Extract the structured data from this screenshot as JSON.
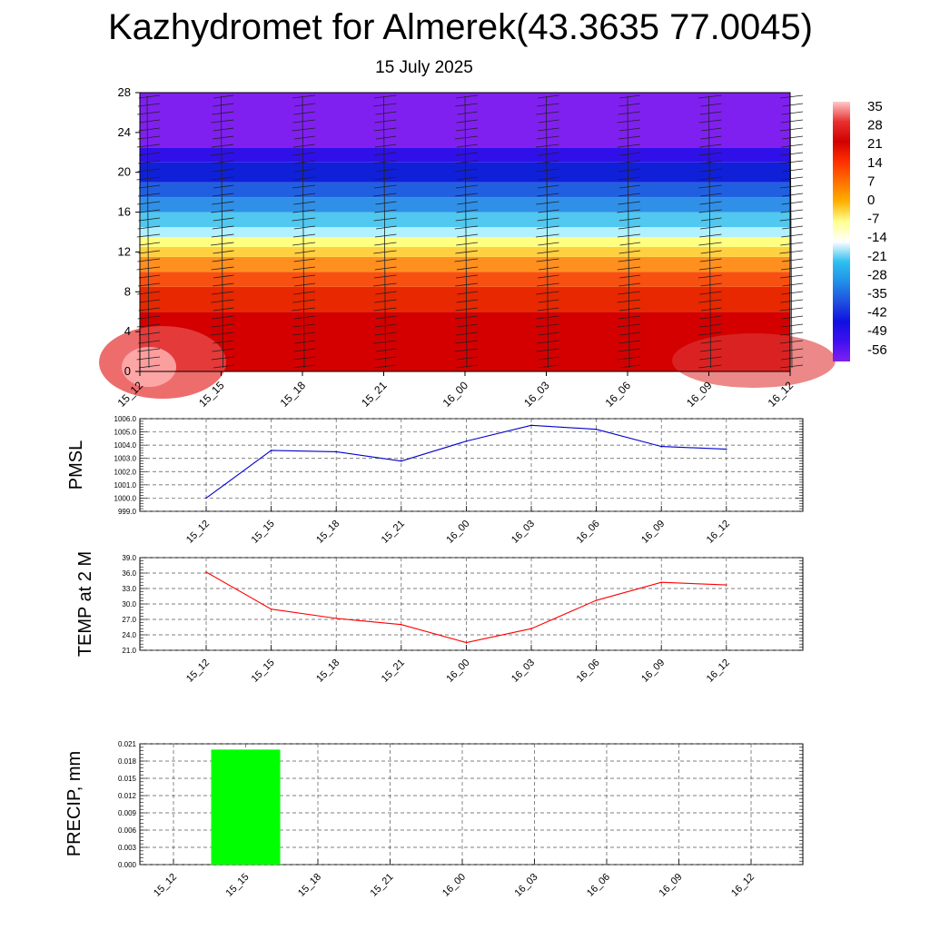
{
  "header": {
    "title": "Kazhydromet for Almerek(43.3635 77.0045)",
    "subtitle": "15 July 2025"
  },
  "chart_data": [
    {
      "type": "heatmap",
      "name": "vertical-cross-section",
      "x": [
        "15_12",
        "15_15",
        "15_18",
        "15_21",
        "16_00",
        "16_03",
        "16_06",
        "16_09",
        "16_12"
      ],
      "y_ticks": [
        0,
        4,
        8,
        12,
        16,
        20,
        24,
        28
      ],
      "ylim": [
        0,
        28
      ],
      "colorbar": {
        "labels": [
          "35",
          "28",
          "21",
          "14",
          "7",
          "0",
          "-7",
          "-14",
          "-21",
          "-28",
          "-35",
          "-42",
          "-49",
          "-56"
        ],
        "stops": [
          "#ffc8c8",
          "#e83030",
          "#d20000",
          "#ff3000",
          "#ff7000",
          "#ffb000",
          "#ffff90",
          "#ffffff",
          "#30c0f0",
          "#2090e8",
          "#2050e0",
          "#1010e0",
          "#4010f0",
          "#8020f0"
        ]
      },
      "bands": [
        {
          "from": 0,
          "to": 6,
          "color": "#d40000"
        },
        {
          "from": 6,
          "to": 8.5,
          "color": "#e82800"
        },
        {
          "from": 8.5,
          "to": 10,
          "color": "#f85010"
        },
        {
          "from": 10,
          "to": 11.5,
          "color": "#ff9020"
        },
        {
          "from": 11.5,
          "to": 12.5,
          "color": "#ffd040"
        },
        {
          "from": 12.5,
          "to": 13.5,
          "color": "#ffff80"
        },
        {
          "from": 13.5,
          "to": 14.5,
          "color": "#b0f0ff"
        },
        {
          "from": 14.5,
          "to": 16,
          "color": "#50c8f0"
        },
        {
          "from": 16,
          "to": 17.5,
          "color": "#3090e8"
        },
        {
          "from": 17.5,
          "to": 19,
          "color": "#2060e0"
        },
        {
          "from": 19,
          "to": 21,
          "color": "#1020d8"
        },
        {
          "from": 21,
          "to": 22.5,
          "color": "#3010e8"
        },
        {
          "from": 22.5,
          "to": 28,
          "color": "#8020f0"
        }
      ]
    },
    {
      "type": "line",
      "name": "pmsl",
      "ylabel": "PMSL",
      "x": [
        "15_12",
        "15_15",
        "15_18",
        "15_21",
        "16_00",
        "16_03",
        "16_06",
        "16_09",
        "16_12"
      ],
      "values": [
        1000.0,
        1003.6,
        1003.5,
        1002.8,
        1004.3,
        1005.5,
        1005.2,
        1003.9,
        1003.7
      ],
      "ylim": [
        999.0,
        1006.0
      ],
      "y_ticks": [
        "999.0",
        "1000.0",
        "1001.0",
        "1002.0",
        "1003.0",
        "1004.0",
        "1005.0",
        "1006.0"
      ],
      "color": "#0000cc"
    },
    {
      "type": "line",
      "name": "temp-2m",
      "ylabel": "TEMP at 2 M",
      "x": [
        "15_12",
        "15_15",
        "15_18",
        "15_21",
        "16_00",
        "16_03",
        "16_06",
        "16_09",
        "16_12"
      ],
      "values": [
        36.2,
        29.0,
        27.2,
        26.0,
        22.5,
        25.2,
        30.7,
        34.2,
        33.7
      ],
      "ylim": [
        21.0,
        39.0
      ],
      "y_ticks": [
        "21.0",
        "24.0",
        "27.0",
        "30.0",
        "33.0",
        "36.0",
        "39.0"
      ],
      "color": "#ff0000"
    },
    {
      "type": "bar",
      "name": "precip",
      "ylabel": "PRECIP, mm",
      "categories": [
        "15_12",
        "15_15",
        "15_18",
        "15_21",
        "16_00",
        "16_03",
        "16_06",
        "16_09",
        "16_12"
      ],
      "values": [
        0,
        0.02,
        0,
        0,
        0,
        0,
        0,
        0,
        0
      ],
      "ylim": [
        0,
        0.021
      ],
      "y_ticks": [
        "0.000",
        "0.003",
        "0.006",
        "0.009",
        "0.012",
        "0.015",
        "0.018",
        "0.021"
      ],
      "color": "#00ff00"
    }
  ]
}
